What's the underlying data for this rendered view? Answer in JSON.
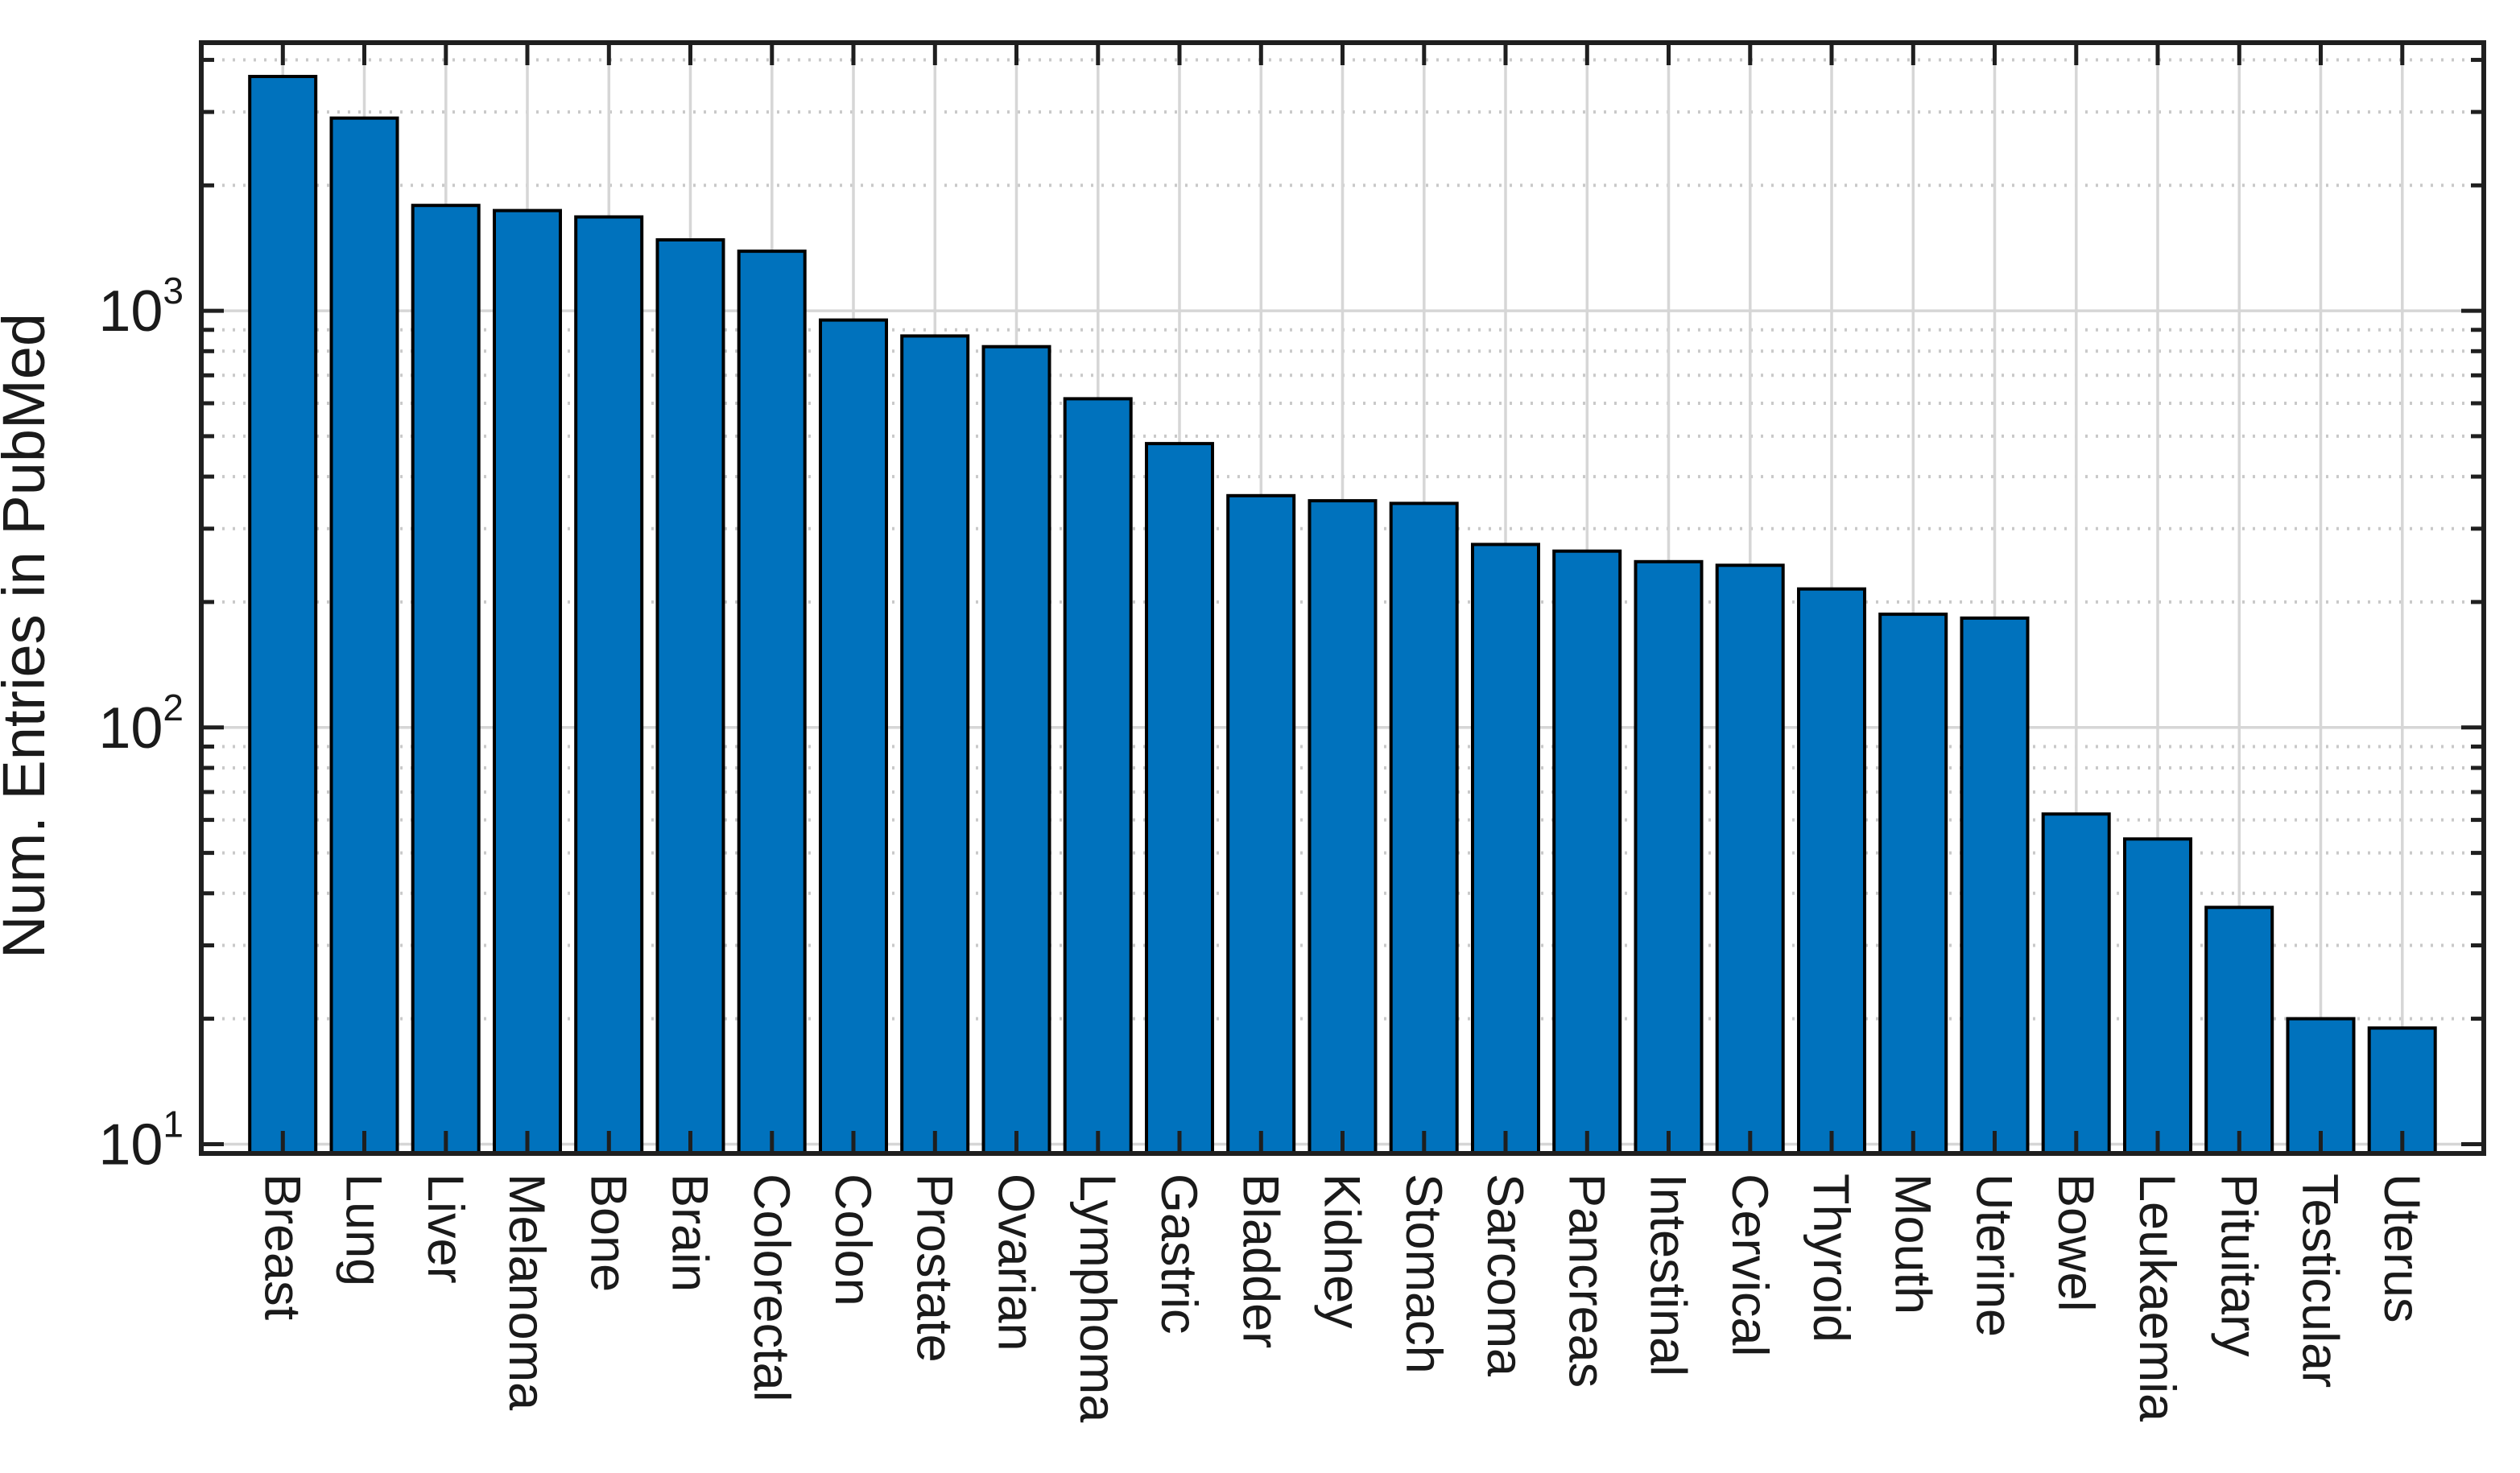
{
  "chart_data": {
    "type": "bar",
    "title": "",
    "xlabel": "",
    "ylabel": "Num. Entries in PubMed",
    "yscale": "log",
    "ylim": [
      9.5,
      4400
    ],
    "categories": [
      "Breast",
      "Lung",
      "Liver",
      "Melanoma",
      "Bone",
      "Brain",
      "Colorectal",
      "Colon",
      "Prostate",
      "Ovarian",
      "Lymphoma",
      "Gastric",
      "Bladder",
      "Kidney",
      "Stomach",
      "Sarcoma",
      "Pancreas",
      "Intestinal",
      "Cervical",
      "Thyroid",
      "Mouth",
      "Uterine",
      "Bowel",
      "Leukaemia",
      "Pituitary",
      "Testicular",
      "Uterus"
    ],
    "values": [
      3650,
      2900,
      1790,
      1740,
      1680,
      1480,
      1390,
      950,
      870,
      820,
      615,
      480,
      360,
      350,
      345,
      275,
      265,
      250,
      245,
      215,
      187,
      183,
      62,
      54,
      37,
      20,
      19
    ],
    "yticks": [
      {
        "value": 10,
        "base": "10",
        "exponent": "1"
      },
      {
        "value": 100,
        "base": "10",
        "exponent": "2"
      },
      {
        "value": 1000,
        "base": "10",
        "exponent": "3"
      }
    ],
    "minor_gridline_values": [
      20,
      30,
      40,
      50,
      60,
      70,
      80,
      90,
      200,
      300,
      400,
      500,
      600,
      700,
      800,
      900,
      2000,
      3000,
      4000
    ],
    "grid": true,
    "minor_grid": true,
    "vertical_grid_at_bar_centers": true,
    "legend": "none",
    "bar_width_fraction": 0.81,
    "x_label_rotation_deg": 90,
    "colors": {
      "bar_fill": "#0072BD",
      "bar_edge": "#000000",
      "axis_frame": "#1f1f1f",
      "tick": "#1f1f1f",
      "grid_major": "#d6d6d6",
      "grid_minor": "#c9c9c9",
      "text": "#1a1a1a",
      "background": "#ffffff"
    }
  }
}
